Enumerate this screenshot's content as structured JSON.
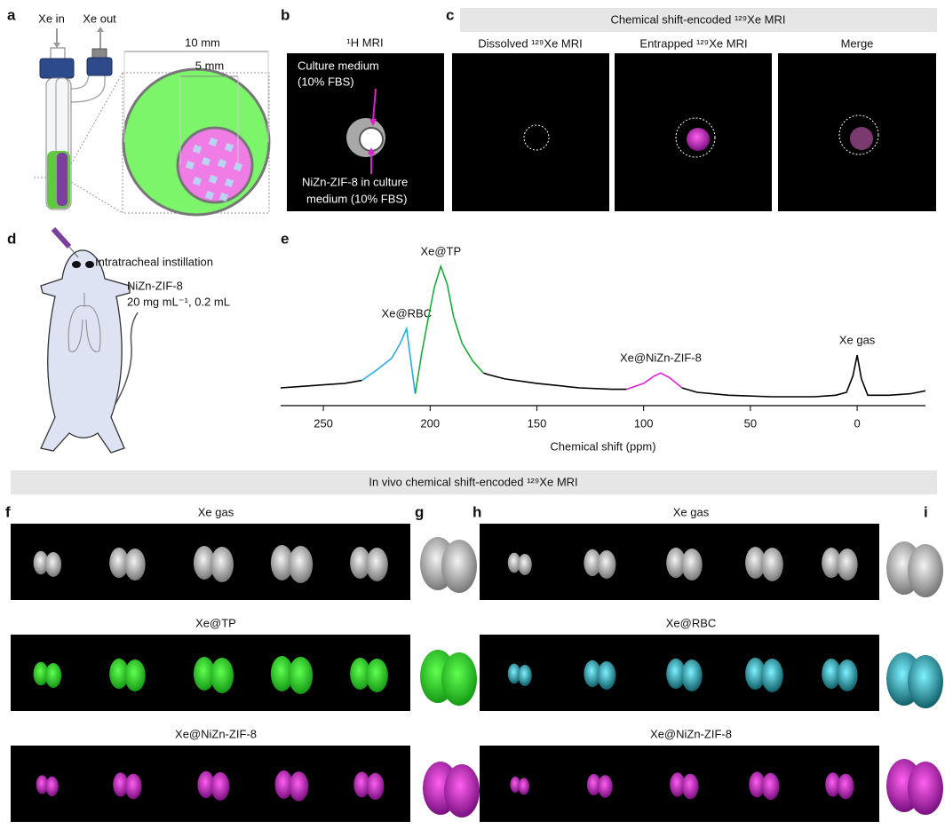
{
  "panel_labels": [
    "a",
    "b",
    "c",
    "d",
    "e",
    "f",
    "g",
    "h",
    "i"
  ],
  "panel_a": {
    "xe_in": "Xe in",
    "xe_out": "Xe out",
    "outer_diameter": "10 mm",
    "inner_diameter": "5 mm"
  },
  "panel_b": {
    "title": "¹H MRI",
    "medium_label": [
      "Culture medium",
      "(10% FBS)"
    ],
    "sample_label": [
      "NiZn-ZIF-8 in culture",
      "medium (10% FBS)"
    ]
  },
  "panel_c": {
    "header": "Chemical shift-encoded ¹²⁹Xe MRI",
    "titles": [
      "Dissolved ¹²⁹Xe MRI",
      "Entrapped ¹²⁹Xe MRI",
      "Merge"
    ]
  },
  "panel_d": {
    "route": "Intratracheal instillation",
    "dose": [
      "NiZn-ZIF-8",
      "20 mg mL⁻¹, 0.2 mL"
    ]
  },
  "in_vivo_header": "In vivo chemical shift-encoded ¹²⁹Xe MRI",
  "panel_f": {
    "rows": [
      "Xe gas",
      "Xe@TP",
      "Xe@NiZn-ZIF-8"
    ]
  },
  "panel_h": {
    "rows": [
      "Xe gas",
      "Xe@RBC",
      "Xe@NiZn-ZIF-8"
    ]
  },
  "chart_data": {
    "type": "line",
    "xlabel": "Chemical shift (ppm)",
    "xlim": [
      270,
      -32
    ],
    "ylim": [
      0,
      100
    ],
    "xticks": [
      250,
      200,
      150,
      100,
      50,
      0
    ],
    "x": [
      270,
      260,
      250,
      240,
      232,
      225,
      218,
      214,
      211,
      209,
      207,
      204,
      201,
      198,
      195,
      192,
      189,
      185,
      180,
      175,
      173,
      165,
      150,
      130,
      115,
      108,
      100,
      95,
      92,
      88,
      82,
      75,
      60,
      40,
      20,
      10,
      5,
      2,
      0,
      -2,
      -5,
      -15,
      -25,
      -32
    ],
    "series": [
      {
        "name": "Xe gas",
        "color": "#000000",
        "values": [
          12,
          13,
          14,
          15,
          17,
          null,
          null,
          null,
          null,
          null,
          null,
          null,
          null,
          null,
          null,
          null,
          null,
          null,
          null,
          22,
          21,
          18,
          15,
          12,
          11,
          11,
          null,
          null,
          null,
          null,
          12,
          9,
          7,
          6,
          6,
          7,
          9,
          20,
          34,
          18,
          7,
          7,
          8,
          10
        ]
      },
      {
        "name": "Xe@RBC",
        "color": "#29abe2",
        "values": [
          null,
          null,
          null,
          null,
          17,
          24,
          32,
          42,
          52,
          30,
          8,
          null,
          null,
          null,
          null,
          null,
          null,
          null,
          null,
          null,
          null,
          null,
          null,
          null,
          null,
          null,
          null,
          null,
          null,
          null,
          null,
          null,
          null,
          null,
          null,
          null,
          null,
          null,
          null,
          null,
          null,
          null,
          null,
          null
        ]
      },
      {
        "name": "Xe@TP",
        "color": "#1aaa3c",
        "values": [
          null,
          null,
          null,
          null,
          null,
          null,
          null,
          null,
          null,
          null,
          8,
          35,
          58,
          80,
          94,
          82,
          60,
          42,
          30,
          22,
          null,
          null,
          null,
          null,
          null,
          null,
          null,
          null,
          null,
          null,
          null,
          null,
          null,
          null,
          null,
          null,
          null,
          null,
          null,
          null,
          null,
          null,
          null,
          null
        ]
      },
      {
        "name": "Xe@NiZn-ZIF-8",
        "color": "#e020d0",
        "values": [
          null,
          null,
          null,
          null,
          null,
          null,
          null,
          null,
          null,
          null,
          null,
          null,
          null,
          null,
          null,
          null,
          null,
          null,
          null,
          null,
          null,
          null,
          null,
          null,
          null,
          11,
          15,
          20,
          22,
          19,
          12,
          null,
          null,
          null,
          null,
          null,
          null,
          null,
          null,
          null,
          null,
          null,
          null,
          null
        ]
      }
    ]
  }
}
